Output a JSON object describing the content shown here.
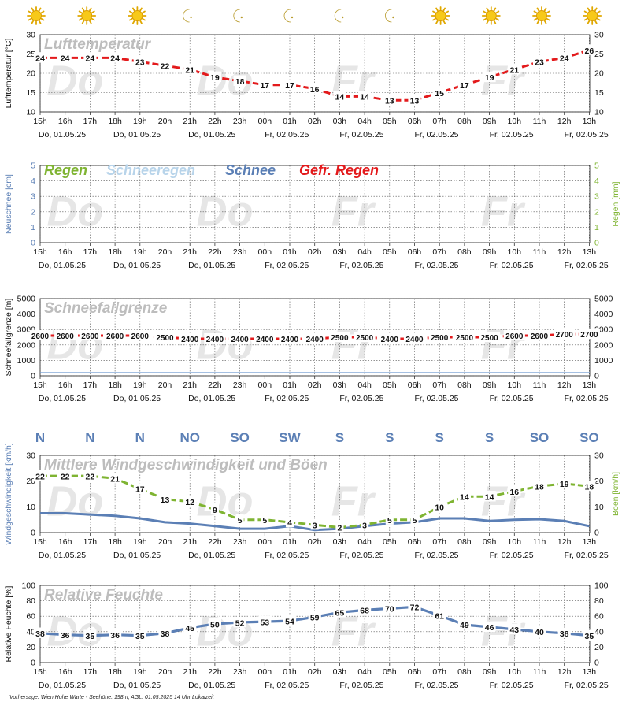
{
  "x_hours": [
    "15h",
    "16h",
    "17h",
    "18h",
    "19h",
    "20h",
    "21h",
    "22h",
    "23h",
    "00h",
    "01h",
    "02h",
    "03h",
    "04h",
    "05h",
    "06h",
    "07h",
    "08h",
    "09h",
    "10h",
    "11h",
    "12h",
    "13h"
  ],
  "date_labels": [
    {
      "index": 0,
      "text": "Do, 01.05.25"
    },
    {
      "index": 3,
      "text": "Do, 01.05.25"
    },
    {
      "index": 6,
      "text": "Do, 01.05.25"
    },
    {
      "index": 9,
      "text": "Fr, 02.05.25"
    },
    {
      "index": 12,
      "text": "Fr, 02.05.25"
    },
    {
      "index": 15,
      "text": "Fr, 02.05.25"
    },
    {
      "index": 18,
      "text": "Fr, 02.05.25"
    },
    {
      "index": 21,
      "text": "Fr, 02.05.25"
    }
  ],
  "watermark_days": [
    {
      "index": 0.2,
      "text": "Do"
    },
    {
      "index": 6.2,
      "text": "Do"
    },
    {
      "index": 11.6,
      "text": "Fr"
    },
    {
      "index": 17.6,
      "text": "Fr"
    }
  ],
  "weather_icons": [
    "sun-icon",
    "sun-icon",
    "sun-icon",
    "moon-icon",
    "moon-icon",
    "moon-icon",
    "moon-icon",
    "moon-icon",
    "sun-icon",
    "sun-icon",
    "sun-icon",
    "sun-icon"
  ],
  "footer": "Vorhersage: Wien Hohe Warte - Seehöhe: 198m, AGL: 01.05.2025 14 Uhr Lokalzeit",
  "colors": {
    "temperature": "#e31a1c",
    "rain": "#7fb432",
    "sleet": "#b8d4ea",
    "snow": "#5b7fb5",
    "freezing_rain": "#e31a1c",
    "wind": "#5b7fb5",
    "gusts": "#7fb432",
    "humidity": "#5b7fb5",
    "snowline": "#e31a1c",
    "grid": "#555555",
    "chart_title": "#bdbdbd",
    "watermark": "#e6e6e6"
  },
  "chart_data": [
    {
      "type": "line",
      "title": "Lufttemperatur",
      "ylabel": "Lufttemperatur [°C]",
      "ylim": [
        10,
        30
      ],
      "yticks": [
        10,
        15,
        20,
        25,
        30
      ],
      "grid": true,
      "series": [
        {
          "values": [
            24,
            24,
            24,
            24,
            23,
            22,
            21,
            19,
            18,
            17,
            17,
            16,
            14,
            14,
            13,
            13,
            15,
            17,
            19,
            21,
            23,
            24,
            26
          ]
        }
      ]
    },
    {
      "type": "bar",
      "legend": [
        "Regen",
        "Schneeregen",
        "Schnee",
        "Gefr. Regen"
      ],
      "ylabel_left": "Neuschnee [cm]",
      "ylabel_right": "Regen [mm]",
      "ylim": [
        0,
        5
      ],
      "yticks": [
        0,
        1,
        2,
        3,
        4,
        5
      ],
      "grid": true,
      "series": [
        {
          "name": "Regen",
          "values": [
            0,
            0,
            0,
            0,
            0,
            0,
            0,
            0,
            0,
            0,
            0,
            0,
            0,
            0,
            0,
            0,
            0,
            0,
            0,
            0,
            0,
            0,
            0
          ]
        },
        {
          "name": "Schnee",
          "values": [
            0,
            0,
            0,
            0,
            0,
            0,
            0,
            0,
            0,
            0,
            0,
            0,
            0,
            0,
            0,
            0,
            0,
            0,
            0,
            0,
            0,
            0,
            0
          ]
        }
      ]
    },
    {
      "type": "line",
      "title": "Schneefallgrenze",
      "ylabel": "Schneefallgrenze [m]",
      "ylim": [
        0,
        5000
      ],
      "yticks": [
        0,
        1000,
        2000,
        3000,
        4000,
        5000
      ],
      "grid": true,
      "reference_line": 198,
      "series": [
        {
          "values": [
            2600,
            2600,
            2600,
            2600,
            2600,
            2500,
            2400,
            2400,
            2400,
            2400,
            2400,
            2400,
            2500,
            2500,
            2400,
            2400,
            2500,
            2500,
            2500,
            2600,
            2600,
            2700,
            2700
          ]
        }
      ]
    },
    {
      "type": "line",
      "title": "Mittlere Windgeschwindigkeit und Böen",
      "ylabel_left": "Windgeschwindigkeit [km/h]",
      "ylabel_right": "Böen [km/h]",
      "ylim": [
        0,
        30
      ],
      "yticks": [
        0,
        10,
        20,
        30
      ],
      "grid": true,
      "wind_directions": [
        {
          "index": 0,
          "text": "N"
        },
        {
          "index": 2,
          "text": "N"
        },
        {
          "index": 4,
          "text": "N"
        },
        {
          "index": 6,
          "text": "NO"
        },
        {
          "index": 8,
          "text": "SO"
        },
        {
          "index": 10,
          "text": "SW"
        },
        {
          "index": 12,
          "text": "S"
        },
        {
          "index": 14,
          "text": "S"
        },
        {
          "index": 16,
          "text": "S"
        },
        {
          "index": 18,
          "text": "S"
        },
        {
          "index": 20,
          "text": "SO"
        },
        {
          "index": 22,
          "text": "SO"
        }
      ],
      "series": [
        {
          "name": "Böen",
          "values": [
            22,
            22,
            22,
            21,
            17,
            13,
            12,
            9,
            5,
            5,
            4,
            3,
            2,
            3,
            5,
            5,
            10,
            14,
            14,
            16,
            18,
            19,
            18
          ]
        },
        {
          "name": "Windgeschwindigkeit",
          "values": [
            7.5,
            7.5,
            7,
            6.5,
            5.5,
            4,
            3.5,
            2.5,
            1.5,
            1.5,
            2.5,
            1,
            1.5,
            2.5,
            3.5,
            4,
            5.5,
            5.5,
            4.5,
            5,
            5.2,
            4.5,
            2.5
          ]
        }
      ]
    },
    {
      "type": "line",
      "title": "Relative Feuchte",
      "ylabel": "Relative Feuchte [%]",
      "ylim": [
        0,
        100
      ],
      "yticks": [
        0,
        20,
        40,
        60,
        80,
        100
      ],
      "grid": true,
      "series": [
        {
          "values": [
            38,
            36,
            35,
            36,
            35,
            38,
            45,
            50,
            52,
            53,
            54,
            59,
            65,
            68,
            70,
            72,
            61,
            49,
            46,
            43,
            40,
            38,
            35
          ]
        }
      ]
    }
  ]
}
